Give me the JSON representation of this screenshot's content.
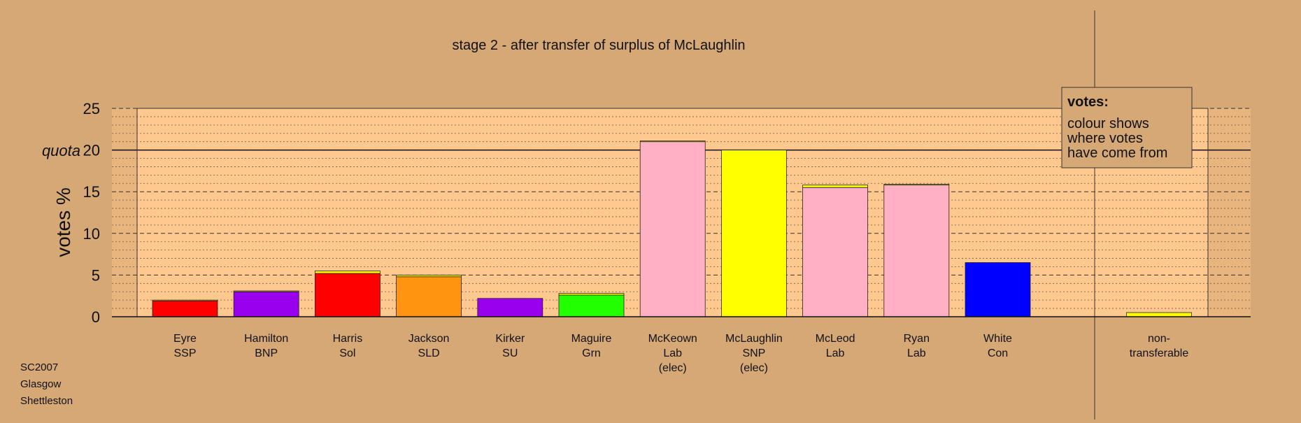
{
  "chart_data": {
    "type": "bar",
    "title": "stage 2 - after transfer of surplus of McLaughlin",
    "ylabel": "votes %",
    "ylim": [
      0,
      25
    ],
    "yticks": [
      0,
      5,
      10,
      15,
      20,
      25
    ],
    "quota": {
      "label": "quota",
      "value": 20
    },
    "grid": true,
    "categories": [
      {
        "lines": [
          "Eyre",
          "SSP"
        ]
      },
      {
        "lines": [
          "Hamilton",
          "BNP"
        ]
      },
      {
        "lines": [
          "Harris",
          "Sol"
        ]
      },
      {
        "lines": [
          "Jackson",
          "SLD"
        ]
      },
      {
        "lines": [
          "Kirker",
          "SU"
        ]
      },
      {
        "lines": [
          "Maguire",
          "Grn"
        ]
      },
      {
        "lines": [
          "McKeown",
          "Lab",
          "(elec)"
        ]
      },
      {
        "lines": [
          "McLaughlin",
          "SNP",
          "(elec)"
        ]
      },
      {
        "lines": [
          "McLeod",
          "Lab"
        ]
      },
      {
        "lines": [
          "Ryan",
          "Lab"
        ]
      },
      {
        "lines": [
          "White",
          "Con"
        ]
      },
      {
        "lines": [
          "non-",
          "transferable"
        ]
      }
    ],
    "bars": [
      {
        "segments": [
          {
            "value": 1.9,
            "color": "#ff0000"
          },
          {
            "value": 0.1,
            "color": "#ffff00"
          }
        ]
      },
      {
        "segments": [
          {
            "value": 3.0,
            "color": "#9900ee"
          },
          {
            "value": 0.1,
            "color": "#ffff00"
          }
        ]
      },
      {
        "segments": [
          {
            "value": 5.2,
            "color": "#ff0000"
          },
          {
            "value": 0.3,
            "color": "#ffff00"
          }
        ]
      },
      {
        "segments": [
          {
            "value": 4.8,
            "color": "#ff9411"
          },
          {
            "value": 0.2,
            "color": "#ffff00"
          }
        ]
      },
      {
        "segments": [
          {
            "value": 2.2,
            "color": "#9900ee"
          }
        ]
      },
      {
        "segments": [
          {
            "value": 2.6,
            "color": "#22ff00"
          },
          {
            "value": 0.2,
            "color": "#ffff00"
          }
        ]
      },
      {
        "segments": [
          {
            "value": 21.0,
            "color": "#ffb0c4"
          },
          {
            "value": 0.1,
            "color": "#ffff00"
          }
        ]
      },
      {
        "segments": [
          {
            "value": 20.0,
            "color": "#ffff00"
          }
        ]
      },
      {
        "segments": [
          {
            "value": 15.5,
            "color": "#ffb0c4"
          },
          {
            "value": 0.3,
            "color": "#ffff00"
          }
        ]
      },
      {
        "segments": [
          {
            "value": 15.8,
            "color": "#ffb0c4"
          },
          {
            "value": 0.1,
            "color": "#ffff00"
          }
        ]
      },
      {
        "segments": [
          {
            "value": 6.5,
            "color": "#0000ff"
          }
        ]
      },
      {
        "segments": [
          {
            "value": 0.5,
            "color": "#ffff00"
          }
        ]
      }
    ],
    "legend": {
      "title": "votes:",
      "lines": [
        "colour shows",
        "where votes",
        "have come from"
      ],
      "position": "top-right"
    },
    "colors": {
      "background": "#d5a876",
      "plot_area": "#ffc88f",
      "margin_area": "#e8b57e"
    }
  },
  "footer": {
    "lines": [
      "SC2007",
      "Glasgow",
      "Shettleston"
    ]
  }
}
